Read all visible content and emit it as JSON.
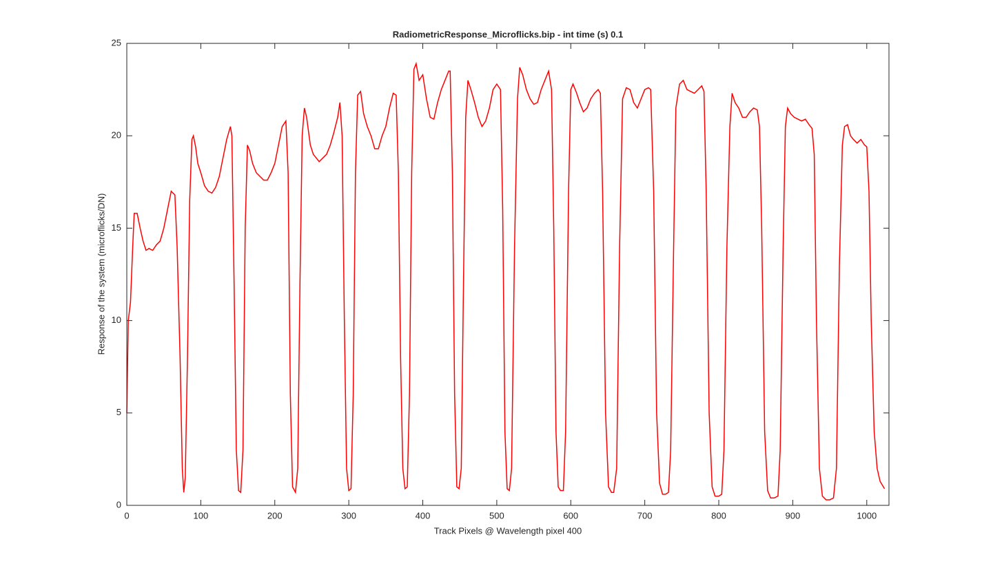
{
  "chart_data": {
    "type": "line",
    "title": "RadiometricResponse_Microflicks.bip - int time (s) 0.1",
    "x_label": "Track Pixels @ Wavelength pixel 400",
    "y_label": "Response of the system (microflicks/DN)",
    "xlim": [
      0,
      1030
    ],
    "ylim": [
      0,
      25
    ],
    "xticks": [
      0,
      100,
      200,
      300,
      400,
      500,
      600,
      700,
      800,
      900,
      1000
    ],
    "yticks": [
      0,
      5,
      10,
      15,
      20,
      25
    ],
    "grid": false,
    "x": [
      0,
      2,
      5,
      8,
      10,
      14,
      18,
      22,
      26,
      30,
      35,
      40,
      45,
      50,
      55,
      60,
      65,
      68,
      72,
      75,
      77,
      79,
      82,
      85,
      88,
      90,
      93,
      96,
      100,
      105,
      110,
      115,
      120,
      125,
      130,
      135,
      140,
      142,
      145,
      148,
      151,
      154,
      157,
      160,
      163,
      166,
      170,
      175,
      180,
      185,
      190,
      195,
      200,
      205,
      210,
      215,
      218,
      221,
      224,
      228,
      231,
      234,
      237,
      240,
      243,
      248,
      252,
      256,
      260,
      265,
      270,
      275,
      280,
      285,
      288,
      291,
      294,
      297,
      300,
      303,
      306,
      309,
      312,
      316,
      320,
      325,
      330,
      335,
      340,
      345,
      350,
      355,
      360,
      364,
      367,
      370,
      373,
      376,
      379,
      382,
      385,
      388,
      391,
      395,
      400,
      405,
      410,
      415,
      420,
      425,
      430,
      435,
      437,
      440,
      443,
      446,
      449,
      452,
      455,
      458,
      461,
      465,
      470,
      475,
      480,
      485,
      490,
      495,
      500,
      505,
      508,
      511,
      514,
      517,
      520,
      524,
      528,
      531,
      535,
      540,
      545,
      550,
      555,
      560,
      565,
      570,
      574,
      577,
      580,
      583,
      586,
      590,
      593,
      597,
      600,
      603,
      608,
      612,
      617,
      622,
      627,
      632,
      637,
      640,
      643,
      647,
      651,
      655,
      658,
      662,
      666,
      670,
      675,
      680,
      685,
      690,
      695,
      700,
      705,
      708,
      712,
      716,
      720,
      724,
      728,
      732,
      735,
      739,
      742,
      747,
      752,
      757,
      762,
      767,
      772,
      777,
      780,
      783,
      787,
      791,
      795,
      800,
      804,
      807,
      811,
      815,
      818,
      822,
      827,
      832,
      837,
      842,
      847,
      852,
      855,
      858,
      862,
      866,
      870,
      875,
      880,
      883,
      887,
      890,
      893,
      897,
      902,
      907,
      912,
      917,
      922,
      926,
      929,
      932,
      936,
      940,
      945,
      950,
      955,
      959,
      963,
      967,
      970,
      974,
      978,
      982,
      987,
      992,
      997,
      1000,
      1003,
      1006,
      1010,
      1014,
      1018,
      1024
    ],
    "series": [
      {
        "name": "response",
        "color": "#ff0000",
        "values": [
          5,
          10,
          11,
          14,
          15.8,
          15.8,
          15,
          14.3,
          13.8,
          13.9,
          13.8,
          14.1,
          14.3,
          15,
          16,
          17,
          16.8,
          14,
          8,
          2,
          0.7,
          1.5,
          8,
          16.5,
          19.8,
          20,
          19.4,
          18.5,
          18,
          17.3,
          17,
          16.9,
          17.2,
          17.8,
          18.8,
          19.8,
          20.5,
          20,
          12,
          3,
          0.8,
          0.7,
          3,
          15,
          19.5,
          19.2,
          18.5,
          18,
          17.8,
          17.6,
          17.6,
          18,
          18.5,
          19.5,
          20.5,
          20.8,
          18,
          6,
          1,
          0.7,
          2,
          12,
          20,
          21.5,
          21,
          19.5,
          19,
          18.8,
          18.6,
          18.8,
          19,
          19.5,
          20.2,
          21,
          21.8,
          20,
          10,
          2,
          0.8,
          0.9,
          6,
          18,
          22.2,
          22.4,
          21.2,
          20.5,
          20,
          19.3,
          19.3,
          20,
          20.5,
          21.5,
          22.3,
          22.2,
          18,
          8,
          2,
          0.9,
          1,
          6,
          18,
          23.6,
          23.9,
          23,
          23.3,
          22,
          21,
          20.9,
          21.8,
          22.5,
          23,
          23.5,
          23.5,
          18,
          6,
          1,
          0.9,
          2,
          12,
          21,
          23,
          22.5,
          21.8,
          21,
          20.5,
          20.8,
          21.5,
          22.5,
          22.8,
          22.5,
          16,
          4,
          0.9,
          0.8,
          2,
          14,
          22,
          23.7,
          23.3,
          22.5,
          22,
          21.7,
          21.8,
          22.5,
          23,
          23.5,
          22.5,
          15,
          4,
          1,
          0.8,
          0.8,
          4,
          17,
          22.5,
          22.8,
          22.3,
          21.8,
          21.3,
          21.5,
          22,
          22.3,
          22.5,
          22.3,
          17,
          5,
          1,
          0.7,
          0.7,
          2,
          14,
          22,
          22.6,
          22.5,
          21.8,
          21.5,
          22,
          22.5,
          22.6,
          22.5,
          17,
          5,
          1.2,
          0.6,
          0.6,
          0.7,
          3,
          14,
          21.5,
          22.8,
          23,
          22.5,
          22.4,
          22.3,
          22.5,
          22.7,
          22.4,
          17,
          5,
          1,
          0.5,
          0.5,
          0.6,
          3,
          14,
          20.5,
          22.3,
          21.8,
          21.5,
          21,
          21,
          21.3,
          21.5,
          21.4,
          20.5,
          15,
          4,
          0.8,
          0.4,
          0.4,
          0.5,
          3,
          14,
          20.5,
          21.5,
          21.2,
          21,
          20.9,
          20.8,
          20.9,
          20.6,
          20.4,
          19,
          10,
          2,
          0.5,
          0.3,
          0.3,
          0.4,
          2,
          13,
          19.5,
          20.5,
          20.6,
          20,
          19.8,
          19.6,
          19.8,
          19.5,
          19.4,
          17,
          10,
          4,
          2,
          1.3,
          0.9
        ]
      }
    ]
  }
}
